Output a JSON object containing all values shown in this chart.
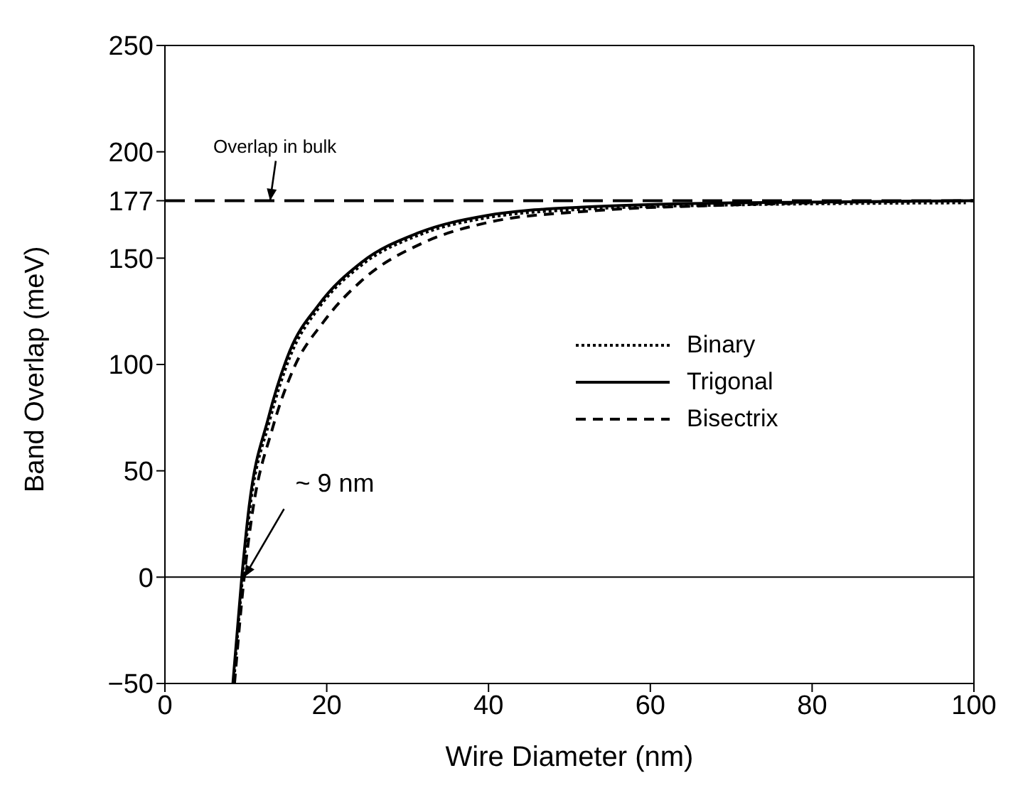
{
  "chart_data": {
    "type": "line",
    "xlabel": "Wire Diameter (nm)",
    "ylabel": "Band Overlap (meV)",
    "xlim": [
      0,
      100
    ],
    "xticks": [
      0,
      20,
      40,
      60,
      80,
      100
    ],
    "ylim": [
      -50,
      250
    ],
    "yticks": [
      -50,
      0,
      50,
      100,
      150,
      177,
      200,
      250
    ],
    "grid": false,
    "legend": "right",
    "marker": "none",
    "series": [
      {
        "name": "Binary",
        "color": "#000000",
        "line_style": "dotted",
        "x": [
          8.5,
          9.6,
          10.5,
          12.9,
          15.5,
          19.1,
          24.4,
          31.5,
          39.8,
          51.7,
          70,
          99
        ],
        "values": [
          -50,
          0,
          32,
          73,
          104,
          127,
          147,
          161,
          169,
          173,
          175,
          176
        ]
      },
      {
        "name": "Trigonal",
        "color": "#000000",
        "line_style": "solid",
        "x": [
          8.4,
          9.5,
          10.4,
          12.8,
          15.4,
          19,
          24.3,
          31.4,
          39.7,
          51.6,
          70,
          100
        ],
        "values": [
          -50,
          0,
          33,
          75,
          106,
          128,
          148,
          162,
          170,
          174,
          176,
          177
        ]
      },
      {
        "name": "Bisectrix",
        "color": "#000000",
        "line_style": "dashed",
        "x": [
          8.6,
          9.8,
          10.8,
          13.3,
          15.9,
          19.6,
          24.8,
          31.8,
          40.2,
          52,
          70,
          100
        ],
        "values": [
          -50,
          0,
          30,
          70,
          98,
          120,
          141,
          157,
          167,
          172,
          175,
          177
        ]
      }
    ],
    "ref_lines": [
      {
        "axis": "y",
        "value": 0,
        "line_style": "solid",
        "color": "#000000"
      },
      {
        "axis": "y",
        "value": 177,
        "line_style": "dashed",
        "color": "#000000"
      }
    ],
    "annotations": [
      {
        "text": "Overlap in bulk",
        "x": 13,
        "y": 177
      },
      {
        "text": "~ 9 nm",
        "x": 9.8,
        "y": 0
      }
    ]
  }
}
